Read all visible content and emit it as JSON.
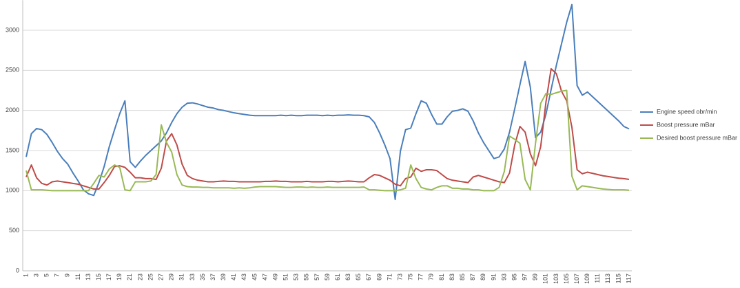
{
  "chart_data": {
    "type": "line",
    "categories": [
      1,
      null,
      3,
      null,
      5,
      null,
      7,
      null,
      9,
      null,
      11,
      null,
      13,
      null,
      15,
      null,
      17,
      null,
      19,
      null,
      21,
      null,
      23,
      null,
      25,
      null,
      27,
      null,
      29,
      null,
      31,
      null,
      33,
      null,
      35,
      null,
      37,
      null,
      39,
      null,
      41,
      null,
      43,
      null,
      45,
      null,
      47,
      null,
      49,
      null,
      51,
      null,
      53,
      null,
      55,
      null,
      57,
      null,
      59,
      null,
      61,
      null,
      63,
      null,
      65,
      null,
      67,
      null,
      69,
      null,
      71,
      null,
      73,
      null,
      75,
      null,
      77,
      null,
      79,
      null,
      81,
      null,
      83,
      null,
      85,
      null,
      87,
      null,
      89,
      null,
      91,
      null,
      93,
      null,
      95,
      null,
      97,
      null,
      99,
      null,
      101,
      null,
      103,
      null,
      105,
      null,
      107,
      null,
      109,
      null,
      111,
      null,
      113,
      null,
      115,
      null,
      117
    ],
    "series": [
      {
        "name": "Engine speed obr/min",
        "color": "#4a7ebb",
        "values": [
          1420,
          1710,
          1775,
          1760,
          1700,
          1600,
          1490,
          1400,
          1330,
          1220,
          1120,
          1010,
          960,
          940,
          1100,
          1300,
          1550,
          1760,
          1960,
          2120,
          1360,
          1290,
          1370,
          1440,
          1500,
          1560,
          1620,
          1720,
          1850,
          1960,
          2040,
          2090,
          2095,
          2080,
          2060,
          2040,
          2030,
          2010,
          2000,
          1985,
          1970,
          1960,
          1950,
          1940,
          1935,
          1935,
          1935,
          1935,
          1935,
          1940,
          1935,
          1940,
          1935,
          1935,
          1940,
          1940,
          1940,
          1935,
          1940,
          1935,
          1940,
          1940,
          1945,
          1940,
          1940,
          1935,
          1920,
          1850,
          1720,
          1570,
          1400,
          890,
          1490,
          1760,
          1780,
          1960,
          2120,
          2090,
          1950,
          1830,
          1830,
          1920,
          1990,
          2000,
          2020,
          1990,
          1870,
          1720,
          1600,
          1500,
          1400,
          1420,
          1520,
          1730,
          2020,
          2320,
          2610,
          2290,
          1660,
          1730,
          1950,
          2260,
          2560,
          2830,
          3100,
          3320,
          2310,
          2190,
          2230,
          2170,
          2110,
          2050,
          1990,
          1930,
          1870,
          1800,
          1770
        ]
      },
      {
        "name": "Boost pressure mBar",
        "color": "#be4b48",
        "values": [
          1170,
          1320,
          1160,
          1090,
          1070,
          1110,
          1120,
          1110,
          1100,
          1090,
          1080,
          1060,
          1040,
          1020,
          1020,
          1100,
          1190,
          1300,
          1310,
          1290,
          1230,
          1160,
          1160,
          1150,
          1150,
          1140,
          1280,
          1620,
          1710,
          1570,
          1330,
          1190,
          1150,
          1130,
          1120,
          1110,
          1110,
          1115,
          1120,
          1115,
          1115,
          1110,
          1110,
          1110,
          1110,
          1110,
          1115,
          1115,
          1120,
          1115,
          1115,
          1110,
          1110,
          1110,
          1115,
          1110,
          1110,
          1110,
          1115,
          1115,
          1110,
          1115,
          1120,
          1115,
          1110,
          1110,
          1160,
          1200,
          1190,
          1160,
          1130,
          1080,
          1060,
          1150,
          1170,
          1280,
          1240,
          1260,
          1260,
          1250,
          1200,
          1150,
          1130,
          1120,
          1110,
          1100,
          1170,
          1190,
          1170,
          1150,
          1130,
          1110,
          1100,
          1220,
          1570,
          1800,
          1730,
          1460,
          1310,
          1550,
          2100,
          2520,
          2460,
          2240,
          2120,
          1790,
          1260,
          1210,
          1230,
          1215,
          1200,
          1185,
          1175,
          1165,
          1155,
          1150,
          1140
        ]
      },
      {
        "name": "Desired boost pressure mBar",
        "color": "#98b954",
        "values": [
          1250,
          1010,
          1010,
          1010,
          1005,
          1000,
          1000,
          1000,
          1000,
          1000,
          1000,
          1000,
          1000,
          1090,
          1190,
          1170,
          1270,
          1320,
          1290,
          1010,
          1000,
          1110,
          1110,
          1110,
          1120,
          1200,
          1820,
          1600,
          1480,
          1200,
          1070,
          1050,
          1045,
          1045,
          1040,
          1040,
          1035,
          1035,
          1035,
          1035,
          1030,
          1035,
          1030,
          1035,
          1045,
          1050,
          1050,
          1050,
          1050,
          1045,
          1040,
          1040,
          1045,
          1045,
          1040,
          1045,
          1040,
          1040,
          1045,
          1040,
          1040,
          1040,
          1040,
          1040,
          1040,
          1045,
          1010,
          1010,
          1005,
          1000,
          1000,
          1000,
          1010,
          1030,
          1320,
          1150,
          1040,
          1020,
          1010,
          1040,
          1060,
          1060,
          1030,
          1030,
          1020,
          1020,
          1010,
          1010,
          1000,
          1000,
          1000,
          1040,
          1240,
          1680,
          1640,
          1590,
          1140,
          1010,
          1590,
          2090,
          2210,
          2200,
          2220,
          2240,
          2250,
          1180,
          1010,
          1060,
          1050,
          1040,
          1030,
          1020,
          1015,
          1010,
          1010,
          1010,
          1005
        ]
      }
    ],
    "ylim": [
      0,
      3375
    ],
    "yticks": [
      0,
      500,
      1000,
      1500,
      2000,
      2500,
      3000
    ],
    "grid": true,
    "legend": "right"
  }
}
